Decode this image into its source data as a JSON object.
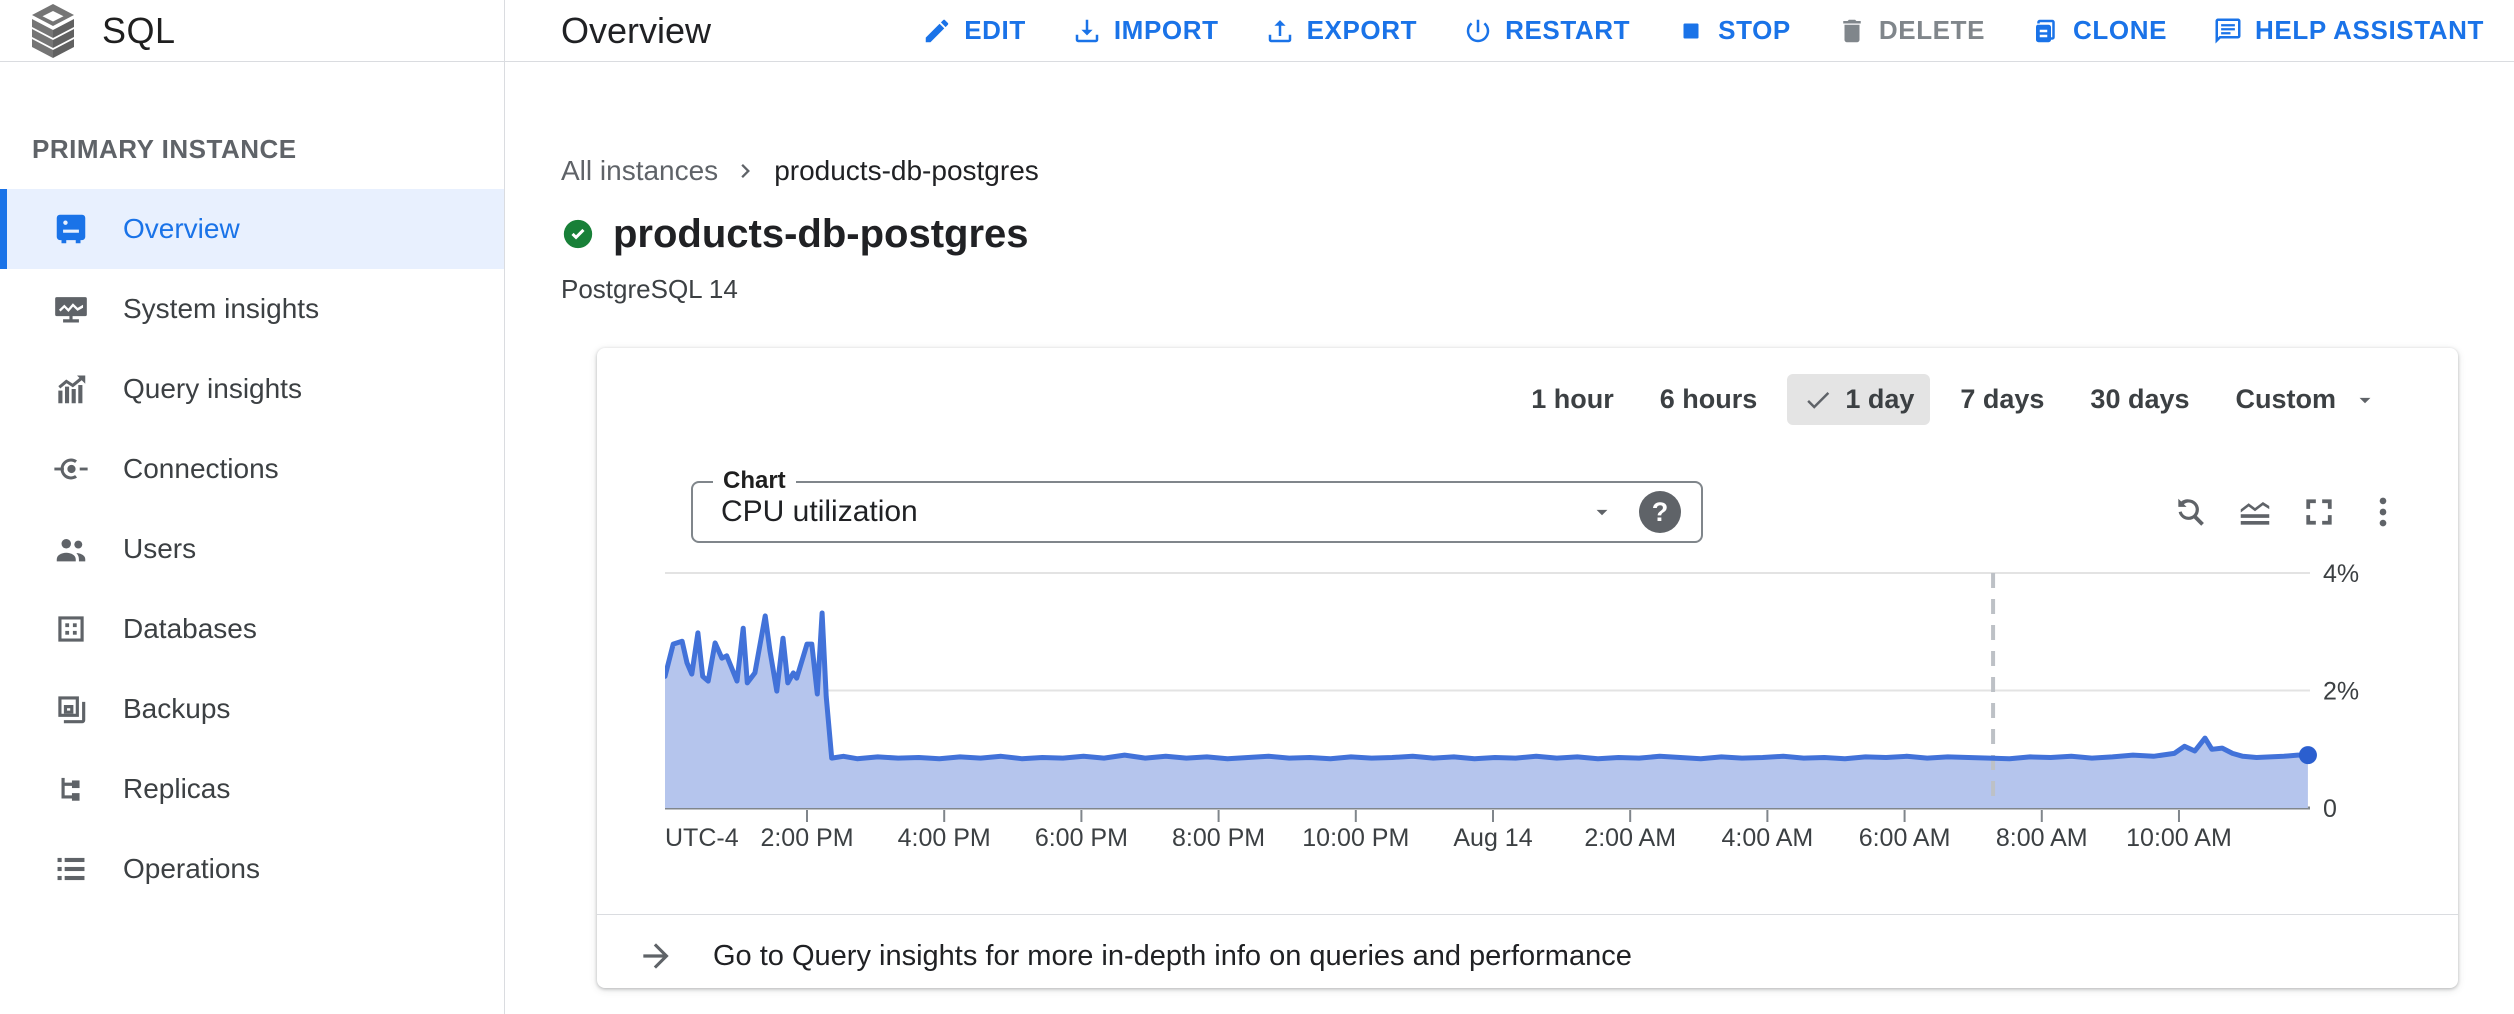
{
  "app": {
    "product": "SQL"
  },
  "header": {
    "title": "Overview",
    "actions": [
      {
        "id": "edit",
        "label": "EDIT",
        "icon": "pencil-icon",
        "enabled": true
      },
      {
        "id": "import",
        "label": "IMPORT",
        "icon": "download-icon",
        "enabled": true
      },
      {
        "id": "export",
        "label": "EXPORT",
        "icon": "upload-icon",
        "enabled": true
      },
      {
        "id": "restart",
        "label": "RESTART",
        "icon": "power-icon",
        "enabled": true
      },
      {
        "id": "stop",
        "label": "STOP",
        "icon": "stop-icon",
        "enabled": true
      },
      {
        "id": "delete",
        "label": "DELETE",
        "icon": "trash-icon",
        "enabled": false
      },
      {
        "id": "clone",
        "label": "CLONE",
        "icon": "clone-icon",
        "enabled": true
      },
      {
        "id": "help",
        "label": "HELP ASSISTANT",
        "icon": "chat-icon",
        "enabled": true
      }
    ]
  },
  "sidebar": {
    "section_label": "PRIMARY INSTANCE",
    "items": [
      {
        "label": "Overview",
        "icon": "instance-icon",
        "selected": true
      },
      {
        "label": "System insights",
        "icon": "monitor-icon",
        "selected": false
      },
      {
        "label": "Query insights",
        "icon": "bar-chart-icon",
        "selected": false
      },
      {
        "label": "Connections",
        "icon": "plug-icon",
        "selected": false
      },
      {
        "label": "Users",
        "icon": "people-icon",
        "selected": false
      },
      {
        "label": "Databases",
        "icon": "grid-icon",
        "selected": false
      },
      {
        "label": "Backups",
        "icon": "backup-icon",
        "selected": false
      },
      {
        "label": "Replicas",
        "icon": "tree-icon",
        "selected": false
      },
      {
        "label": "Operations",
        "icon": "list-icon",
        "selected": false
      }
    ]
  },
  "main": {
    "breadcrumb": {
      "parent": "All instances",
      "current": "products-db-postgres"
    },
    "instance": {
      "name": "products-db-postgres",
      "status": "running",
      "engine": "PostgreSQL 14"
    },
    "time_ranges": {
      "options": [
        "1 hour",
        "6 hours",
        "1 day",
        "7 days",
        "30 days",
        "Custom"
      ],
      "selected": "1 day"
    },
    "chart_selector": {
      "label": "Chart",
      "value": "CPU utilization",
      "help": "?"
    },
    "insights_link": "Go to Query insights for more in-depth info on queries and performance"
  },
  "colors": {
    "accent": "#1a73e8",
    "selected_bg": "#e8f0fe",
    "status_green": "#188038",
    "line": "#4272d9",
    "fill": "#b5c5ed",
    "dot": "#2b5fcf",
    "grid": "#e3e3e3",
    "axis": "#80868b",
    "axis_label": "#3c4043",
    "marker": "#bdc1c6",
    "disabled": "#80868b"
  },
  "chart_data": {
    "type": "area",
    "title": "CPU utilization",
    "unit": "%",
    "ylim": [
      0,
      4
    ],
    "yticks": [
      {
        "v": 0,
        "label": "0"
      },
      {
        "v": 2,
        "label": "2%"
      },
      {
        "v": 4,
        "label": "4%"
      }
    ],
    "x_hours_span": 23.98,
    "timezone_label": "UTC-4",
    "xticks": [
      {
        "t": 0,
        "label": "UTC-4",
        "tick": false,
        "anchor": "start"
      },
      {
        "t": 2.07,
        "label": "2:00 PM"
      },
      {
        "t": 4.07,
        "label": "4:00 PM"
      },
      {
        "t": 6.07,
        "label": "6:00 PM"
      },
      {
        "t": 8.07,
        "label": "8:00 PM"
      },
      {
        "t": 10.07,
        "label": "10:00 PM"
      },
      {
        "t": 12.07,
        "label": "Aug 14"
      },
      {
        "t": 14.07,
        "label": "2:00 AM"
      },
      {
        "t": 16.07,
        "label": "4:00 AM"
      },
      {
        "t": 18.07,
        "label": "6:00 AM"
      },
      {
        "t": 20.07,
        "label": "8:00 AM"
      },
      {
        "t": 22.07,
        "label": "10:00 AM"
      }
    ],
    "marker_t": 19.36,
    "grid": true,
    "end_dot": true,
    "series": [
      {
        "name": "CPU utilization (%)",
        "points": [
          [
            0,
            2.24
          ],
          [
            0.12,
            2.79
          ],
          [
            0.25,
            2.84
          ],
          [
            0.32,
            2.47
          ],
          [
            0.39,
            2.28
          ],
          [
            0.48,
            2.98
          ],
          [
            0.55,
            2.24
          ],
          [
            0.63,
            2.16
          ],
          [
            0.73,
            2.81
          ],
          [
            0.83,
            2.55
          ],
          [
            0.9,
            2.59
          ],
          [
            1.05,
            2.16
          ],
          [
            1.14,
            3.06
          ],
          [
            1.2,
            2.13
          ],
          [
            1.31,
            2.3
          ],
          [
            1.46,
            3.27
          ],
          [
            1.53,
            2.67
          ],
          [
            1.63,
            1.99
          ],
          [
            1.72,
            2.89
          ],
          [
            1.79,
            2.13
          ],
          [
            1.87,
            2.3
          ],
          [
            1.92,
            2.21
          ],
          [
            2.07,
            2.79
          ],
          [
            2.14,
            2.79
          ],
          [
            2.22,
            1.94
          ],
          [
            2.29,
            3.32
          ],
          [
            2.35,
            1.9
          ],
          [
            2.43,
            0.85
          ],
          [
            2.6,
            0.88
          ],
          [
            2.8,
            0.84
          ],
          [
            3.1,
            0.87
          ],
          [
            3.4,
            0.85
          ],
          [
            3.7,
            0.86
          ],
          [
            4.0,
            0.84
          ],
          [
            4.3,
            0.87
          ],
          [
            4.6,
            0.85
          ],
          [
            4.9,
            0.88
          ],
          [
            5.2,
            0.84
          ],
          [
            5.5,
            0.86
          ],
          [
            5.8,
            0.85
          ],
          [
            6.1,
            0.88
          ],
          [
            6.4,
            0.85
          ],
          [
            6.7,
            0.9
          ],
          [
            7.0,
            0.85
          ],
          [
            7.3,
            0.88
          ],
          [
            7.6,
            0.85
          ],
          [
            7.9,
            0.87
          ],
          [
            8.2,
            0.84
          ],
          [
            8.5,
            0.86
          ],
          [
            8.8,
            0.88
          ],
          [
            9.1,
            0.85
          ],
          [
            9.4,
            0.86
          ],
          [
            9.7,
            0.84
          ],
          [
            10.0,
            0.87
          ],
          [
            10.3,
            0.85
          ],
          [
            10.6,
            0.86
          ],
          [
            10.9,
            0.88
          ],
          [
            11.2,
            0.85
          ],
          [
            11.5,
            0.87
          ],
          [
            11.8,
            0.84
          ],
          [
            12.1,
            0.86
          ],
          [
            12.4,
            0.85
          ],
          [
            12.7,
            0.88
          ],
          [
            13.0,
            0.85
          ],
          [
            13.3,
            0.87
          ],
          [
            13.6,
            0.84
          ],
          [
            13.9,
            0.86
          ],
          [
            14.2,
            0.85
          ],
          [
            14.5,
            0.88
          ],
          [
            14.8,
            0.86
          ],
          [
            15.1,
            0.84
          ],
          [
            15.4,
            0.87
          ],
          [
            15.7,
            0.85
          ],
          [
            16.0,
            0.86
          ],
          [
            16.3,
            0.88
          ],
          [
            16.6,
            0.85
          ],
          [
            16.9,
            0.86
          ],
          [
            17.2,
            0.84
          ],
          [
            17.5,
            0.87
          ],
          [
            17.8,
            0.86
          ],
          [
            18.1,
            0.88
          ],
          [
            18.4,
            0.85
          ],
          [
            18.7,
            0.87
          ],
          [
            19.0,
            0.86
          ],
          [
            19.3,
            0.85
          ],
          [
            19.6,
            0.84
          ],
          [
            19.9,
            0.87
          ],
          [
            20.2,
            0.86
          ],
          [
            20.5,
            0.88
          ],
          [
            20.8,
            0.85
          ],
          [
            21.1,
            0.87
          ],
          [
            21.4,
            0.9
          ],
          [
            21.7,
            0.88
          ],
          [
            22.0,
            0.93
          ],
          [
            22.15,
            1.05
          ],
          [
            22.3,
            0.97
          ],
          [
            22.45,
            1.19
          ],
          [
            22.55,
            1.0
          ],
          [
            22.7,
            1.02
          ],
          [
            22.85,
            0.93
          ],
          [
            23.0,
            0.88
          ],
          [
            23.2,
            0.86
          ],
          [
            23.4,
            0.87
          ],
          [
            23.6,
            0.88
          ],
          [
            23.8,
            0.9
          ],
          [
            23.95,
            0.9
          ]
        ]
      }
    ]
  }
}
